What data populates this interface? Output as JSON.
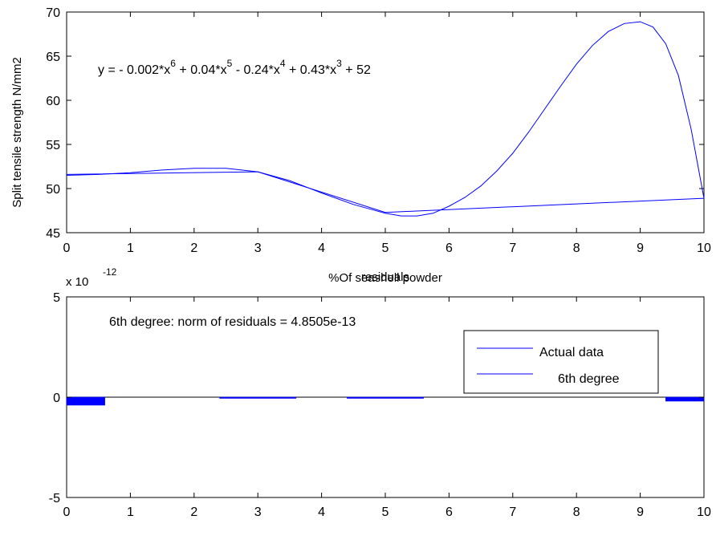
{
  "chart_data": [
    {
      "type": "line",
      "title": "",
      "xlabel": "%Of seashell powder",
      "ylabel": "Split tensile strength N/mm2",
      "xlim": [
        0,
        10
      ],
      "ylim": [
        45,
        70
      ],
      "x_ticks": [
        "0",
        "1",
        "2",
        "3",
        "4",
        "5",
        "6",
        "7",
        "8",
        "9",
        "10"
      ],
      "y_ticks": [
        "45",
        "50",
        "55",
        "60",
        "65",
        "70"
      ],
      "grid": false,
      "equation": {
        "parts": [
          "y = - 0.002*x",
          "6",
          " + 0.04*x",
          "5",
          " - 0.24*x",
          "4",
          " + 0.43*x",
          "3",
          " + 52"
        ]
      },
      "series": [
        {
          "name": "Actual data",
          "x": [
            0,
            3,
            5,
            10
          ],
          "y": [
            51.6,
            51.9,
            47.3,
            48.9
          ],
          "color": "#0000ff"
        },
        {
          "name": "6th degree",
          "x": [
            0,
            0.5,
            1,
            1.5,
            2,
            2.5,
            3,
            3.5,
            4,
            4.5,
            5,
            5.25,
            5.5,
            5.75,
            6,
            6.25,
            6.5,
            6.75,
            7,
            7.25,
            7.5,
            7.75,
            8,
            8.25,
            8.5,
            8.75,
            9,
            9.2,
            9.4,
            9.6,
            9.8,
            10
          ],
          "y": [
            51.5,
            51.6,
            51.8,
            52.1,
            52.3,
            52.3,
            51.9,
            50.9,
            49.5,
            48.2,
            47.2,
            46.9,
            46.9,
            47.2,
            48.0,
            49.0,
            50.3,
            52.0,
            54.0,
            56.4,
            59.0,
            61.6,
            64.1,
            66.2,
            67.8,
            68.7,
            68.9,
            68.3,
            66.4,
            62.8,
            56.7,
            48.9
          ],
          "color": "#0000ff"
        }
      ],
      "legend": {
        "placement": "inside-right",
        "entries": [
          "Actual data",
          "6th degree"
        ]
      }
    },
    {
      "type": "bar",
      "title": "residuals",
      "xlabel": "",
      "ylabel": "",
      "xlim": [
        0,
        10
      ],
      "ylim": [
        -5,
        5
      ],
      "y_exponent": {
        "base": "x 10",
        "exp": "-12"
      },
      "x_ticks": [
        "0",
        "1",
        "2",
        "3",
        "4",
        "5",
        "6",
        "7",
        "8",
        "9",
        "10"
      ],
      "y_ticks": [
        "-5",
        "0",
        "5"
      ],
      "grid": false,
      "categories": [
        0,
        3,
        5,
        10
      ],
      "values": [
        -0.4,
        -0.02,
        -0.02,
        -0.2
      ],
      "color": "#0000ff",
      "annotation": "6th degree: norm of residuals = 4.8505e-13"
    }
  ]
}
